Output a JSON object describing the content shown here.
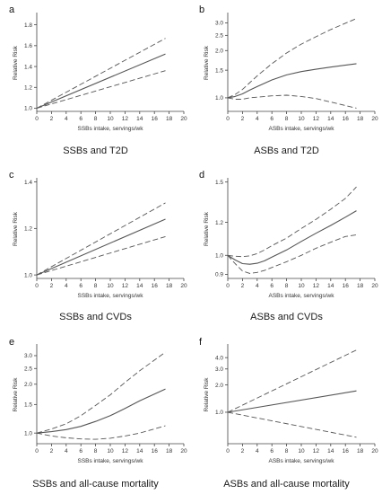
{
  "chart_data": [
    {
      "type": "line",
      "panel_letter": "a",
      "caption": "SSBs and T2D",
      "xlabel": "SSBs intake, servings/wk",
      "ylabel": "Relative Risk",
      "xlim": [
        0,
        20
      ],
      "xticks": [
        0,
        2,
        4,
        6,
        8,
        10,
        12,
        14,
        16,
        18,
        20
      ],
      "ylim": [
        0.97,
        1.9
      ],
      "yticks": [
        1.0,
        1.2,
        1.4,
        1.6,
        1.8
      ],
      "ytick_labels": [
        "1.0",
        "1.2",
        "1.4",
        "1.6",
        "1.8"
      ],
      "yscale": "linear",
      "series": [
        {
          "role": "estimate",
          "style": "solid",
          "x": [
            0,
            17.5
          ],
          "y": [
            1.0,
            1.52
          ]
        },
        {
          "role": "upper",
          "style": "dashed",
          "x": [
            0,
            17.5
          ],
          "y": [
            1.0,
            1.67
          ]
        },
        {
          "role": "lower",
          "style": "dashed",
          "x": [
            0,
            17.5
          ],
          "y": [
            1.0,
            1.36
          ]
        }
      ]
    },
    {
      "type": "line",
      "panel_letter": "b",
      "caption": "ASBs and T2D",
      "xlabel": "ASBs intake, servings/wk",
      "ylabel": "Relative Risk",
      "xlim": [
        0,
        20
      ],
      "xticks": [
        0,
        2,
        4,
        6,
        8,
        10,
        12,
        14,
        16,
        18,
        20
      ],
      "ylim": [
        0.82,
        3.4
      ],
      "yticks": [
        1.0,
        1.5,
        2.0,
        2.5,
        3.0
      ],
      "ytick_labels": [
        "1.0",
        "1.5",
        "2.0",
        "2.5",
        "3.0"
      ],
      "yscale": "log",
      "series": [
        {
          "role": "estimate",
          "style": "solid",
          "x": [
            0,
            1,
            2,
            3,
            4,
            6,
            8,
            10,
            12,
            14,
            17.5
          ],
          "y": [
            1.0,
            1.02,
            1.06,
            1.12,
            1.18,
            1.3,
            1.4,
            1.47,
            1.52,
            1.57,
            1.65
          ]
        },
        {
          "role": "upper",
          "style": "dashed",
          "x": [
            0,
            1,
            2,
            3,
            4,
            6,
            8,
            10,
            12,
            14,
            17.5
          ],
          "y": [
            1.0,
            1.05,
            1.13,
            1.25,
            1.38,
            1.65,
            1.93,
            2.2,
            2.45,
            2.72,
            3.2
          ]
        },
        {
          "role": "lower",
          "style": "dashed",
          "x": [
            0,
            1,
            2,
            3,
            4,
            6,
            8,
            10,
            12,
            14,
            17.5
          ],
          "y": [
            1.0,
            0.98,
            0.98,
            1.0,
            1.01,
            1.03,
            1.04,
            1.02,
            0.99,
            0.94,
            0.86
          ]
        }
      ]
    },
    {
      "type": "line",
      "panel_letter": "c",
      "caption": "SSBs and CVDs",
      "xlabel": "SSBs intake, servings/wk",
      "ylabel": "Relative Risk",
      "xlim": [
        0,
        20
      ],
      "xticks": [
        0,
        2,
        4,
        6,
        8,
        10,
        12,
        14,
        16,
        18,
        20
      ],
      "ylim": [
        0.985,
        1.41
      ],
      "yticks": [
        1.0,
        1.2,
        1.4
      ],
      "ytick_labels": [
        "1.0",
        "1.2",
        "1.4"
      ],
      "yscale": "linear",
      "series": [
        {
          "role": "estimate",
          "style": "solid",
          "x": [
            0,
            17.5
          ],
          "y": [
            1.0,
            1.24
          ]
        },
        {
          "role": "upper",
          "style": "dashed",
          "x": [
            0,
            17.5
          ],
          "y": [
            1.0,
            1.31
          ]
        },
        {
          "role": "lower",
          "style": "dashed",
          "x": [
            0,
            17.5
          ],
          "y": [
            1.0,
            1.165
          ]
        }
      ]
    },
    {
      "type": "line",
      "panel_letter": "d",
      "caption": "ASBs and CVDs",
      "xlabel": "ASBs intake, servings/wk",
      "ylabel": "Relative Risk",
      "xlim": [
        0,
        20
      ],
      "xticks": [
        0,
        2,
        4,
        6,
        8,
        10,
        12,
        14,
        16,
        18,
        20
      ],
      "ylim": [
        0.88,
        1.52
      ],
      "yticks": [
        0.9,
        1.0,
        1.2,
        1.5
      ],
      "ytick_labels": [
        "0.9",
        "1.0",
        "1.2",
        "1.5"
      ],
      "yscale": "log",
      "series": [
        {
          "role": "estimate",
          "style": "solid",
          "x": [
            0,
            1,
            2,
            3,
            4,
            5,
            6,
            8,
            10,
            12,
            14,
            16,
            17.5
          ],
          "y": [
            1.0,
            0.975,
            0.955,
            0.952,
            0.957,
            0.97,
            0.99,
            1.03,
            1.08,
            1.13,
            1.18,
            1.235,
            1.28
          ]
        },
        {
          "role": "upper",
          "style": "dashed",
          "x": [
            0,
            1,
            2,
            3,
            4,
            5,
            6,
            8,
            10,
            12,
            14,
            16,
            17.5
          ],
          "y": [
            1.0,
            0.995,
            0.993,
            0.997,
            1.01,
            1.03,
            1.055,
            1.1,
            1.16,
            1.22,
            1.29,
            1.37,
            1.46
          ]
        },
        {
          "role": "lower",
          "style": "dashed",
          "x": [
            0,
            1,
            2,
            3,
            4,
            5,
            6,
            8,
            10,
            12,
            14,
            16,
            17.5
          ],
          "y": [
            1.0,
            0.955,
            0.917,
            0.905,
            0.91,
            0.92,
            0.935,
            0.965,
            1.0,
            1.04,
            1.075,
            1.11,
            1.12
          ]
        }
      ]
    },
    {
      "type": "line",
      "panel_letter": "e",
      "caption": "SSBs and all-cause mortality",
      "xlabel": "SSBs intake, servings/wk",
      "ylabel": "Relative Risk",
      "xlim": [
        0,
        20
      ],
      "xticks": [
        0,
        2,
        4,
        6,
        8,
        10,
        12,
        14,
        16,
        18,
        20
      ],
      "ylim": [
        0.86,
        3.45
      ],
      "yticks": [
        1.0,
        1.5,
        2.0,
        2.5,
        3.0
      ],
      "ytick_labels": [
        "1.0",
        "1.5",
        "2.0",
        "2.5",
        "3.0"
      ],
      "yscale": "log",
      "series": [
        {
          "role": "estimate",
          "style": "solid",
          "x": [
            0,
            2,
            4,
            6,
            8,
            10,
            12,
            14,
            17.5
          ],
          "y": [
            1.0,
            1.02,
            1.05,
            1.1,
            1.18,
            1.28,
            1.42,
            1.58,
            1.87
          ]
        },
        {
          "role": "upper",
          "style": "dashed",
          "x": [
            0,
            2,
            4,
            6,
            8,
            10,
            12,
            14,
            17.5
          ],
          "y": [
            1.0,
            1.06,
            1.14,
            1.28,
            1.48,
            1.72,
            2.05,
            2.42,
            3.15
          ]
        },
        {
          "role": "lower",
          "style": "dashed",
          "x": [
            0,
            2,
            4,
            6,
            8,
            10,
            12,
            14,
            17.5
          ],
          "y": [
            1.0,
            0.96,
            0.935,
            0.92,
            0.915,
            0.93,
            0.96,
            1.0,
            1.11
          ]
        }
      ]
    },
    {
      "type": "line",
      "panel_letter": "f",
      "caption": "ASBs and all-cause mortality",
      "xlabel": "ASBs intake, servings/wk",
      "ylabel": "Relative Risk",
      "xlim": [
        0,
        20
      ],
      "xticks": [
        0,
        2,
        4,
        6,
        8,
        10,
        12,
        14,
        16,
        18,
        20
      ],
      "ylim": [
        0.45,
        5.4
      ],
      "yticks": [
        1.0,
        2.0,
        3.0,
        4.0
      ],
      "ytick_labels": [
        "1.0",
        "2.0",
        "3.0",
        "4.0"
      ],
      "yscale": "log",
      "series": [
        {
          "role": "estimate",
          "style": "solid",
          "x": [
            0,
            17.5
          ],
          "y": [
            1.0,
            1.72
          ]
        },
        {
          "role": "upper",
          "style": "dashed",
          "x": [
            0,
            17.5
          ],
          "y": [
            1.0,
            4.85
          ]
        },
        {
          "role": "lower",
          "style": "dashed",
          "x": [
            0,
            17.5
          ],
          "y": [
            1.0,
            0.53
          ]
        }
      ]
    }
  ]
}
